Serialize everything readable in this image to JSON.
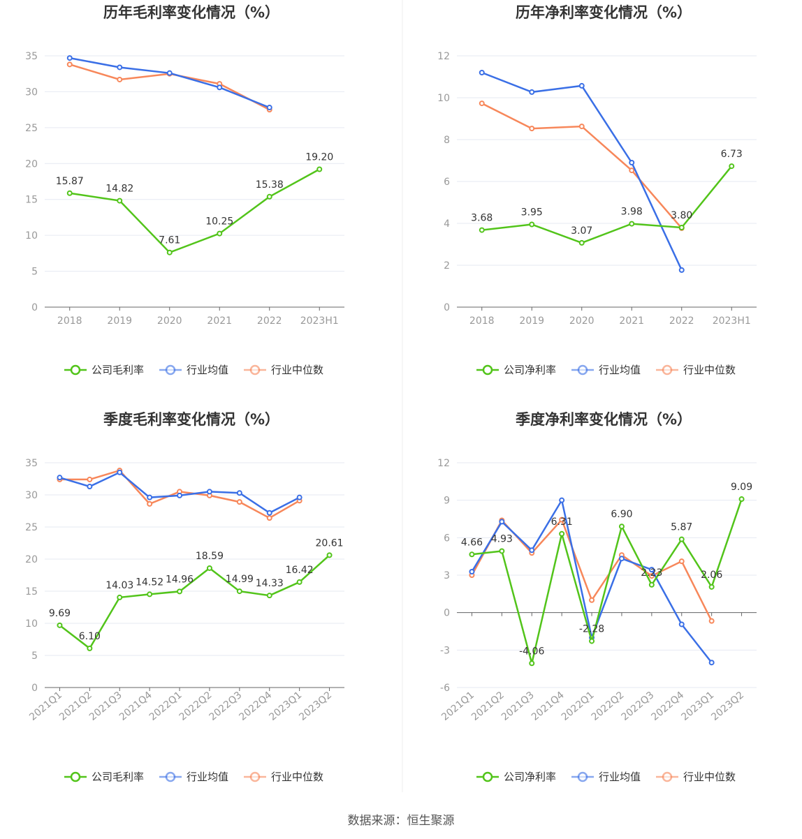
{
  "footer": "数据来源：恒生聚源",
  "colors": {
    "company": "#52c41a",
    "avg": "#3a6fe6",
    "median": "#f7875a",
    "grid": "#e6e9f2",
    "axis": "#666666"
  },
  "chart_data": [
    {
      "type": "line",
      "title": "历年毛利率变化情况（%）",
      "categories": [
        "2018",
        "2019",
        "2020",
        "2021",
        "2022",
        "2023H1"
      ],
      "ylim": [
        0,
        35
      ],
      "yticks": [
        0,
        5,
        10,
        15,
        20,
        25,
        30,
        35
      ],
      "grid": true,
      "legend_position": "bottom",
      "series": [
        {
          "name": "公司毛利率",
          "key": "company",
          "labels": true,
          "values": [
            15.87,
            14.82,
            7.61,
            10.25,
            15.38,
            19.2
          ]
        },
        {
          "name": "行业均值",
          "key": "avg",
          "values": [
            34.7,
            33.4,
            32.6,
            30.6,
            27.8,
            null
          ]
        },
        {
          "name": "行业中位数",
          "key": "median",
          "values": [
            33.8,
            31.7,
            32.5,
            31.1,
            27.5,
            null
          ]
        }
      ]
    },
    {
      "type": "line",
      "title": "历年净利率变化情况（%）",
      "categories": [
        "2018",
        "2019",
        "2020",
        "2021",
        "2022",
        "2023H1"
      ],
      "ylim": [
        0,
        12
      ],
      "yticks": [
        0,
        2,
        4,
        6,
        8,
        10,
        12
      ],
      "grid": true,
      "legend_position": "bottom",
      "series": [
        {
          "name": "公司净利率",
          "key": "company",
          "labels": true,
          "values": [
            3.68,
            3.95,
            3.07,
            3.98,
            3.8,
            6.73
          ]
        },
        {
          "name": "行业均值",
          "key": "avg",
          "values": [
            11.2,
            10.27,
            10.57,
            6.9,
            1.77,
            null
          ]
        },
        {
          "name": "行业中位数",
          "key": "median",
          "values": [
            9.73,
            8.53,
            8.63,
            6.53,
            3.77,
            null
          ]
        }
      ]
    },
    {
      "type": "line",
      "title": "季度毛利率变化情况（%）",
      "categories": [
        "2021Q1",
        "2021Q2",
        "2021Q3",
        "2021Q4",
        "2022Q1",
        "2022Q2",
        "2022Q3",
        "2022Q4",
        "2023Q1",
        "2023Q2"
      ],
      "ylim": [
        0,
        35
      ],
      "yticks": [
        0,
        5,
        10,
        15,
        20,
        25,
        30,
        35
      ],
      "grid": true,
      "legend_position": "bottom",
      "series": [
        {
          "name": "公司毛利率",
          "key": "company",
          "labels": true,
          "values": [
            9.69,
            6.1,
            14.03,
            14.52,
            14.96,
            18.59,
            14.99,
            14.33,
            16.42,
            20.61
          ]
        },
        {
          "name": "行业均值",
          "key": "avg",
          "values": [
            32.7,
            31.3,
            33.5,
            29.6,
            29.9,
            30.5,
            30.3,
            27.2,
            29.6,
            null
          ]
        },
        {
          "name": "行业中位数",
          "key": "median",
          "values": [
            32.4,
            32.4,
            33.8,
            28.6,
            30.5,
            29.9,
            28.9,
            26.4,
            29.1,
            null
          ]
        }
      ]
    },
    {
      "type": "line",
      "title": "季度净利率变化情况（%）",
      "categories": [
        "2021Q1",
        "2021Q2",
        "2021Q3",
        "2021Q4",
        "2022Q1",
        "2022Q2",
        "2022Q3",
        "2022Q4",
        "2023Q1",
        "2023Q2"
      ],
      "ylim": [
        -6,
        12
      ],
      "yticks": [
        -6,
        -3,
        0,
        3,
        6,
        9,
        12
      ],
      "grid": true,
      "legend_position": "bottom",
      "series": [
        {
          "name": "公司净利率",
          "key": "company",
          "labels": true,
          "values": [
            4.66,
            4.93,
            -4.06,
            6.31,
            -2.28,
            6.9,
            2.23,
            5.87,
            2.06,
            9.09
          ]
        },
        {
          "name": "行业均值",
          "key": "avg",
          "values": [
            3.28,
            7.28,
            5.0,
            9.0,
            -2.0,
            4.33,
            3.44,
            -0.94,
            -4.0,
            null
          ]
        },
        {
          "name": "行业中位数",
          "key": "median",
          "values": [
            3.0,
            7.39,
            4.78,
            7.44,
            1.0,
            4.61,
            2.94,
            4.11,
            -0.67,
            null
          ]
        }
      ]
    }
  ]
}
